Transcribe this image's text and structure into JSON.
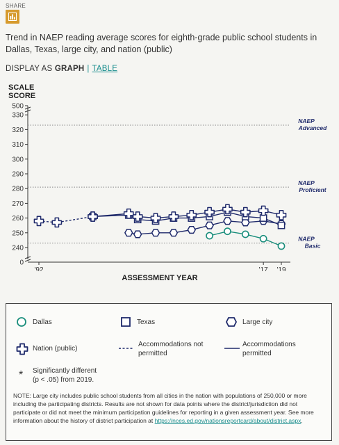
{
  "share": {
    "label": "SHARE"
  },
  "title": "Trend in NAEP reading average scores for eighth-grade public school students in Dallas, Texas, large city, and nation (public)",
  "display": {
    "prefix": "DISPLAY AS ",
    "graph": "GRAPH",
    "separator": "|",
    "table": "TABLE"
  },
  "colors": {
    "dallas": "#1a8e7c",
    "navy": "#1f2a6b",
    "grid": "#888888",
    "accent": "#d69a2d",
    "link": "#1a8e8e"
  },
  "chart_data": {
    "type": "line",
    "ylabel_lines": [
      "SCALE",
      "SCORE"
    ],
    "xlabel": "ASSESSMENT YEAR",
    "ylim": [
      235,
      500
    ],
    "yticks": [
      240,
      250,
      260,
      270,
      280,
      290,
      300,
      310,
      320,
      330,
      500
    ],
    "axis_break": true,
    "xlim": [
      1991.6,
      2019.8
    ],
    "xtick_labels": [
      {
        "year": 1992,
        "label": "'92"
      },
      {
        "year": 2017,
        "label": "'17"
      },
      {
        "year": 2019,
        "label": "'19"
      }
    ],
    "achievement_levels": [
      {
        "value": 323,
        "line1": "NAEP",
        "line2": "Advanced"
      },
      {
        "value": 281,
        "line1": "NAEP",
        "line2": "Proficient"
      },
      {
        "value": 243,
        "line1": "NAEP",
        "line2": "Basic"
      }
    ],
    "series": [
      {
        "name": "Nation (public) - accommodations not permitted",
        "marker": "cross",
        "line": "dashed",
        "x": [
          1992,
          1994,
          1998
        ],
        "y": [
          258,
          257,
          261
        ]
      },
      {
        "name": "Nation (public) - accommodations permitted",
        "marker": "cross",
        "line": "solid",
        "x": [
          1998,
          2002,
          2003,
          2005,
          2007,
          2009,
          2011,
          2013,
          2015,
          2017,
          2019
        ],
        "y": [
          261,
          263,
          261,
          260,
          261,
          262,
          264,
          266,
          264,
          265,
          262
        ]
      },
      {
        "name": "Texas",
        "marker": "square",
        "line": "solid",
        "x": [
          1998,
          2002,
          2003,
          2005,
          2007,
          2009,
          2011,
          2013,
          2015,
          2017,
          2019
        ],
        "y": [
          261,
          262,
          259,
          258,
          260,
          260,
          261,
          264,
          261,
          260,
          255
        ]
      },
      {
        "name": "Large city",
        "marker": "hexagon",
        "line": "solid",
        "x": [
          2002,
          2003,
          2005,
          2007,
          2009,
          2011,
          2013,
          2015,
          2017,
          2019
        ],
        "y": [
          250,
          249,
          250,
          250,
          252,
          255,
          258,
          257,
          258,
          256
        ]
      },
      {
        "name": "Dallas",
        "marker": "circle",
        "line": "solid",
        "x": [
          2011,
          2013,
          2015,
          2017,
          2019
        ],
        "y": [
          248,
          251,
          249,
          246,
          241
        ]
      }
    ]
  },
  "legend": {
    "dallas": "Dallas",
    "texas": "Texas",
    "large_city": "Large city",
    "nation": "Nation (public)",
    "not_permitted_1": "Accommodations not",
    "not_permitted_2": "permitted",
    "permitted_1": "Accommodations",
    "permitted_2": "permitted",
    "asterisk": "*",
    "sig_1": "Significantly different",
    "sig_2": "(p < .05) from 2019."
  },
  "note": {
    "text": "NOTE: Large city includes public school students from all cities in the nation with populations of 250,000 or more including the participating districts. Results are not shown for data points where the district/jurisdiction did not participate or did not meet the minimum participation guidelines for reporting in a given assessment year. See more information about the history of district participation at",
    "url": "https://nces.ed.gov/nationsreportcard/about/district.aspx",
    "end": "."
  }
}
